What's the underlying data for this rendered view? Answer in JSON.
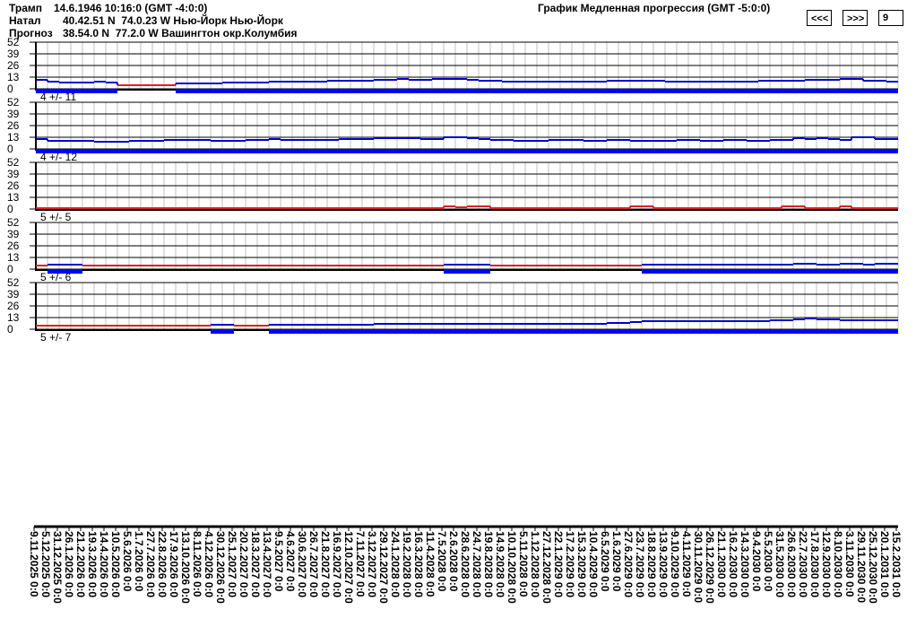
{
  "header": {
    "rows": [
      {
        "label": "Трамп",
        "value": "14.6.1946 10:16:0 (GMT -4:0:0)"
      },
      {
        "label": "Натал",
        "value": "40.42.51 N  74.0.23 W Нью-Йорк Нью-Йорк"
      },
      {
        "label": "Прогноз",
        "value": "38.54.0 N  77.2.0 W Вашингтон окр.Колумбия"
      }
    ],
    "title": "График Медленная прогрессия (GMT -5:0:0)",
    "prev_label": "<<<",
    "next_label": ">>>",
    "count_value": "9"
  },
  "colors": {
    "active": "#0000cc",
    "active_bar": "#0000ff",
    "inactive": "#dd2222",
    "baseline": "#000000",
    "grid_minor": "#c0c0c0",
    "grid_major": "#000000"
  },
  "chart_data": {
    "type": "line",
    "y_ticks": [
      52,
      39,
      26,
      13,
      0
    ],
    "ylim": [
      0,
      52
    ],
    "grid": true,
    "x_labels": [
      "9.11.2025 0:0",
      "5.12.2025 0:0",
      "31.12.2025 0:0",
      "26.1.2026 0:0",
      "21.2.2026 0:0",
      "19.3.2026 0:0",
      "14.4.2026 0:0",
      "10.5.2026 0:0",
      "5.6.2026 0:0",
      "1.7.2026 0:0",
      "27.7.2026 0:0",
      "22.8.2026 0:0",
      "17.9.2026 0:0",
      "13.10.2026 0:0",
      "8.11.2026 0:0",
      "4.12.2026 0:0",
      "30.12.2026 0:0",
      "25.1.2027 0:0",
      "20.2.2027 0:0",
      "18.3.2027 0:0",
      "13.4.2027 0:0",
      "9.5.2027 0:0",
      "4.6.2027 0:0",
      "30.6.2027 0:0",
      "26.7.2027 0:0",
      "21.8.2027 0:0",
      "16.9.2027 0:0",
      "12.10.2027 0:0",
      "7.11.2027 0:0",
      "3.12.2027 0:0",
      "29.12.2027 0:0",
      "24.1.2028 0:0",
      "19.2.2028 0:0",
      "16.3.2028 0:0",
      "11.4.2028 0:0",
      "7.5.2028 0:0",
      "2.6.2028 0:0",
      "28.6.2028 0:0",
      "24.7.2028 0:0",
      "19.8.2028 0:0",
      "14.9.2028 0:0",
      "10.10.2028 0:0",
      "5.11.2028 0:0",
      "1.12.2028 0:0",
      "27.12.2028 0:0",
      "22.1.2029 0:0",
      "17.2.2029 0:0",
      "15.3.2029 0:0",
      "10.4.2029 0:0",
      "6.5.2029 0:0",
      "1.6.2029 0:0",
      "27.6.2029 0:0",
      "23.7.2029 0:0",
      "18.8.2029 0:0",
      "13.9.2029 0:0",
      "9.10.2029 0:0",
      "4.11.2029 0:0",
      "30.11.2029 0:0",
      "26.12.2029 0:0",
      "21.1.2030 0:0",
      "16.2.2030 0:0",
      "14.3.2030 0:0",
      "9.4.2030 0:0",
      "5.5.2030 0:0",
      "31.5.2030 0:0",
      "26.6.2030 0:0",
      "22.7.2030 0:0",
      "17.8.2030 0:0",
      "12.9.2030 0:0",
      "8.10.2030 0:0",
      "3.11.2030 0:0",
      "29.11.2030 0:0",
      "25.12.2030 0:0",
      "20.1.2031 0:0",
      "15.2.2031 0:0"
    ],
    "panels": [
      {
        "label": "4 +/- 11",
        "values": [
          10,
          8,
          7,
          7,
          7,
          8,
          7,
          4,
          4,
          4,
          4,
          4,
          6,
          6,
          6,
          6,
          7,
          7,
          7,
          7,
          8,
          8,
          8,
          8,
          8,
          9,
          9,
          9,
          9,
          10,
          10,
          11,
          10,
          10,
          11,
          11,
          11,
          10,
          9,
          9,
          8,
          8,
          8,
          8,
          8,
          8,
          8,
          8,
          8,
          9,
          9,
          9,
          9,
          9,
          8,
          8,
          8,
          8,
          8,
          8,
          8,
          8,
          9,
          9,
          9,
          9,
          10,
          10,
          10,
          11,
          11,
          9,
          9,
          8,
          8
        ],
        "active": [
          1,
          1,
          1,
          1,
          1,
          1,
          1,
          0,
          0,
          0,
          0,
          0,
          1,
          1,
          1,
          1,
          1,
          1,
          1,
          1,
          1,
          1,
          1,
          1,
          1,
          1,
          1,
          1,
          1,
          1,
          1,
          1,
          1,
          1,
          1,
          1,
          1,
          1,
          1,
          1,
          1,
          1,
          1,
          1,
          1,
          1,
          1,
          1,
          1,
          1,
          1,
          1,
          1,
          1,
          1,
          1,
          1,
          1,
          1,
          1,
          1,
          1,
          1,
          1,
          1,
          1,
          1,
          1,
          1,
          1,
          1,
          1,
          1,
          1,
          1
        ]
      },
      {
        "label": "4 +/- 12",
        "values": [
          11,
          9,
          9,
          9,
          9,
          8,
          8,
          8,
          9,
          9,
          9,
          10,
          10,
          10,
          10,
          9,
          9,
          9,
          10,
          10,
          11,
          10,
          10,
          10,
          10,
          10,
          11,
          11,
          11,
          12,
          12,
          12,
          12,
          11,
          11,
          13,
          13,
          12,
          11,
          10,
          10,
          9,
          9,
          9,
          10,
          10,
          10,
          9,
          9,
          10,
          10,
          9,
          9,
          9,
          9,
          10,
          10,
          9,
          9,
          10,
          10,
          9,
          9,
          10,
          10,
          12,
          11,
          12,
          11,
          10,
          13,
          13,
          11,
          11,
          10
        ],
        "active": [
          1,
          1,
          1,
          1,
          1,
          1,
          1,
          1,
          1,
          1,
          1,
          1,
          1,
          1,
          1,
          1,
          1,
          1,
          1,
          1,
          1,
          1,
          1,
          1,
          1,
          1,
          1,
          1,
          1,
          1,
          1,
          1,
          1,
          1,
          1,
          1,
          1,
          1,
          1,
          1,
          1,
          1,
          1,
          1,
          1,
          1,
          1,
          1,
          1,
          1,
          1,
          1,
          1,
          1,
          1,
          1,
          1,
          1,
          1,
          1,
          1,
          1,
          1,
          1,
          1,
          1,
          1,
          1,
          1,
          1,
          1,
          1,
          1,
          1,
          1
        ]
      },
      {
        "label": "5 +/- 5",
        "values": [
          1,
          1,
          1,
          1,
          1,
          1,
          1,
          1,
          1,
          1,
          1,
          1,
          1,
          1,
          1,
          1,
          1,
          1,
          1,
          1,
          1,
          1,
          1,
          1,
          1,
          1,
          1,
          1,
          1,
          1,
          1,
          1,
          1,
          1,
          1,
          3,
          2,
          3,
          3,
          1,
          1,
          1,
          1,
          1,
          1,
          1,
          1,
          1,
          1,
          1,
          1,
          3,
          3,
          1,
          1,
          1,
          1,
          1,
          1,
          1,
          1,
          1,
          1,
          1,
          3,
          3,
          1,
          1,
          1,
          3,
          1,
          1,
          1,
          1,
          1
        ],
        "active": [
          0,
          0,
          0,
          0,
          0,
          0,
          0,
          0,
          0,
          0,
          0,
          0,
          0,
          0,
          0,
          0,
          0,
          0,
          0,
          0,
          0,
          0,
          0,
          0,
          0,
          0,
          0,
          0,
          0,
          0,
          0,
          0,
          0,
          0,
          0,
          0,
          0,
          0,
          0,
          0,
          0,
          0,
          0,
          0,
          0,
          0,
          0,
          0,
          0,
          0,
          0,
          0,
          0,
          0,
          0,
          0,
          0,
          0,
          0,
          0,
          0,
          0,
          0,
          0,
          0,
          0,
          0,
          0,
          0,
          0,
          0,
          0,
          0,
          0,
          0
        ]
      },
      {
        "label": "5 +/- 6",
        "values": [
          4,
          5,
          5,
          5,
          4,
          4,
          4,
          4,
          4,
          4,
          4,
          4,
          4,
          4,
          4,
          4,
          4,
          4,
          4,
          4,
          4,
          4,
          4,
          4,
          4,
          4,
          4,
          4,
          4,
          4,
          4,
          4,
          4,
          4,
          4,
          5,
          5,
          5,
          5,
          4,
          4,
          4,
          4,
          4,
          4,
          4,
          4,
          4,
          4,
          4,
          4,
          4,
          5,
          5,
          5,
          5,
          5,
          5,
          5,
          5,
          5,
          5,
          5,
          5,
          5,
          6,
          6,
          5,
          5,
          6,
          6,
          5,
          6,
          6,
          5
        ],
        "active": [
          0,
          1,
          1,
          1,
          0,
          0,
          0,
          0,
          0,
          0,
          0,
          0,
          0,
          0,
          0,
          0,
          0,
          0,
          0,
          0,
          0,
          0,
          0,
          0,
          0,
          0,
          0,
          0,
          0,
          0,
          0,
          0,
          0,
          0,
          0,
          1,
          1,
          1,
          1,
          0,
          0,
          0,
          0,
          0,
          0,
          0,
          0,
          0,
          0,
          0,
          0,
          0,
          1,
          1,
          1,
          1,
          1,
          1,
          1,
          1,
          1,
          1,
          1,
          1,
          1,
          1,
          1,
          1,
          1,
          1,
          1,
          1,
          1,
          1,
          1
        ]
      },
      {
        "label": "5 +/- 7",
        "values": [
          4,
          4,
          4,
          4,
          4,
          4,
          4,
          4,
          4,
          4,
          4,
          4,
          4,
          4,
          4,
          5,
          5,
          4,
          4,
          4,
          5,
          5,
          5,
          5,
          5,
          5,
          5,
          5,
          5,
          6,
          6,
          6,
          6,
          6,
          6,
          6,
          6,
          6,
          6,
          6,
          6,
          6,
          6,
          6,
          6,
          6,
          6,
          6,
          6,
          7,
          7,
          8,
          9,
          9,
          9,
          9,
          9,
          9,
          9,
          9,
          9,
          9,
          9,
          10,
          10,
          11,
          12,
          11,
          11,
          10,
          10,
          10,
          10,
          10,
          9
        ],
        "active": [
          0,
          0,
          0,
          0,
          0,
          0,
          0,
          0,
          0,
          0,
          0,
          0,
          0,
          0,
          0,
          1,
          1,
          0,
          0,
          0,
          1,
          1,
          1,
          1,
          1,
          1,
          1,
          1,
          1,
          1,
          1,
          1,
          1,
          1,
          1,
          1,
          1,
          1,
          1,
          1,
          1,
          1,
          1,
          1,
          1,
          1,
          1,
          1,
          1,
          1,
          1,
          1,
          1,
          1,
          1,
          1,
          1,
          1,
          1,
          1,
          1,
          1,
          1,
          1,
          1,
          1,
          1,
          1,
          1,
          1,
          1,
          1,
          1,
          1,
          1
        ]
      }
    ]
  }
}
